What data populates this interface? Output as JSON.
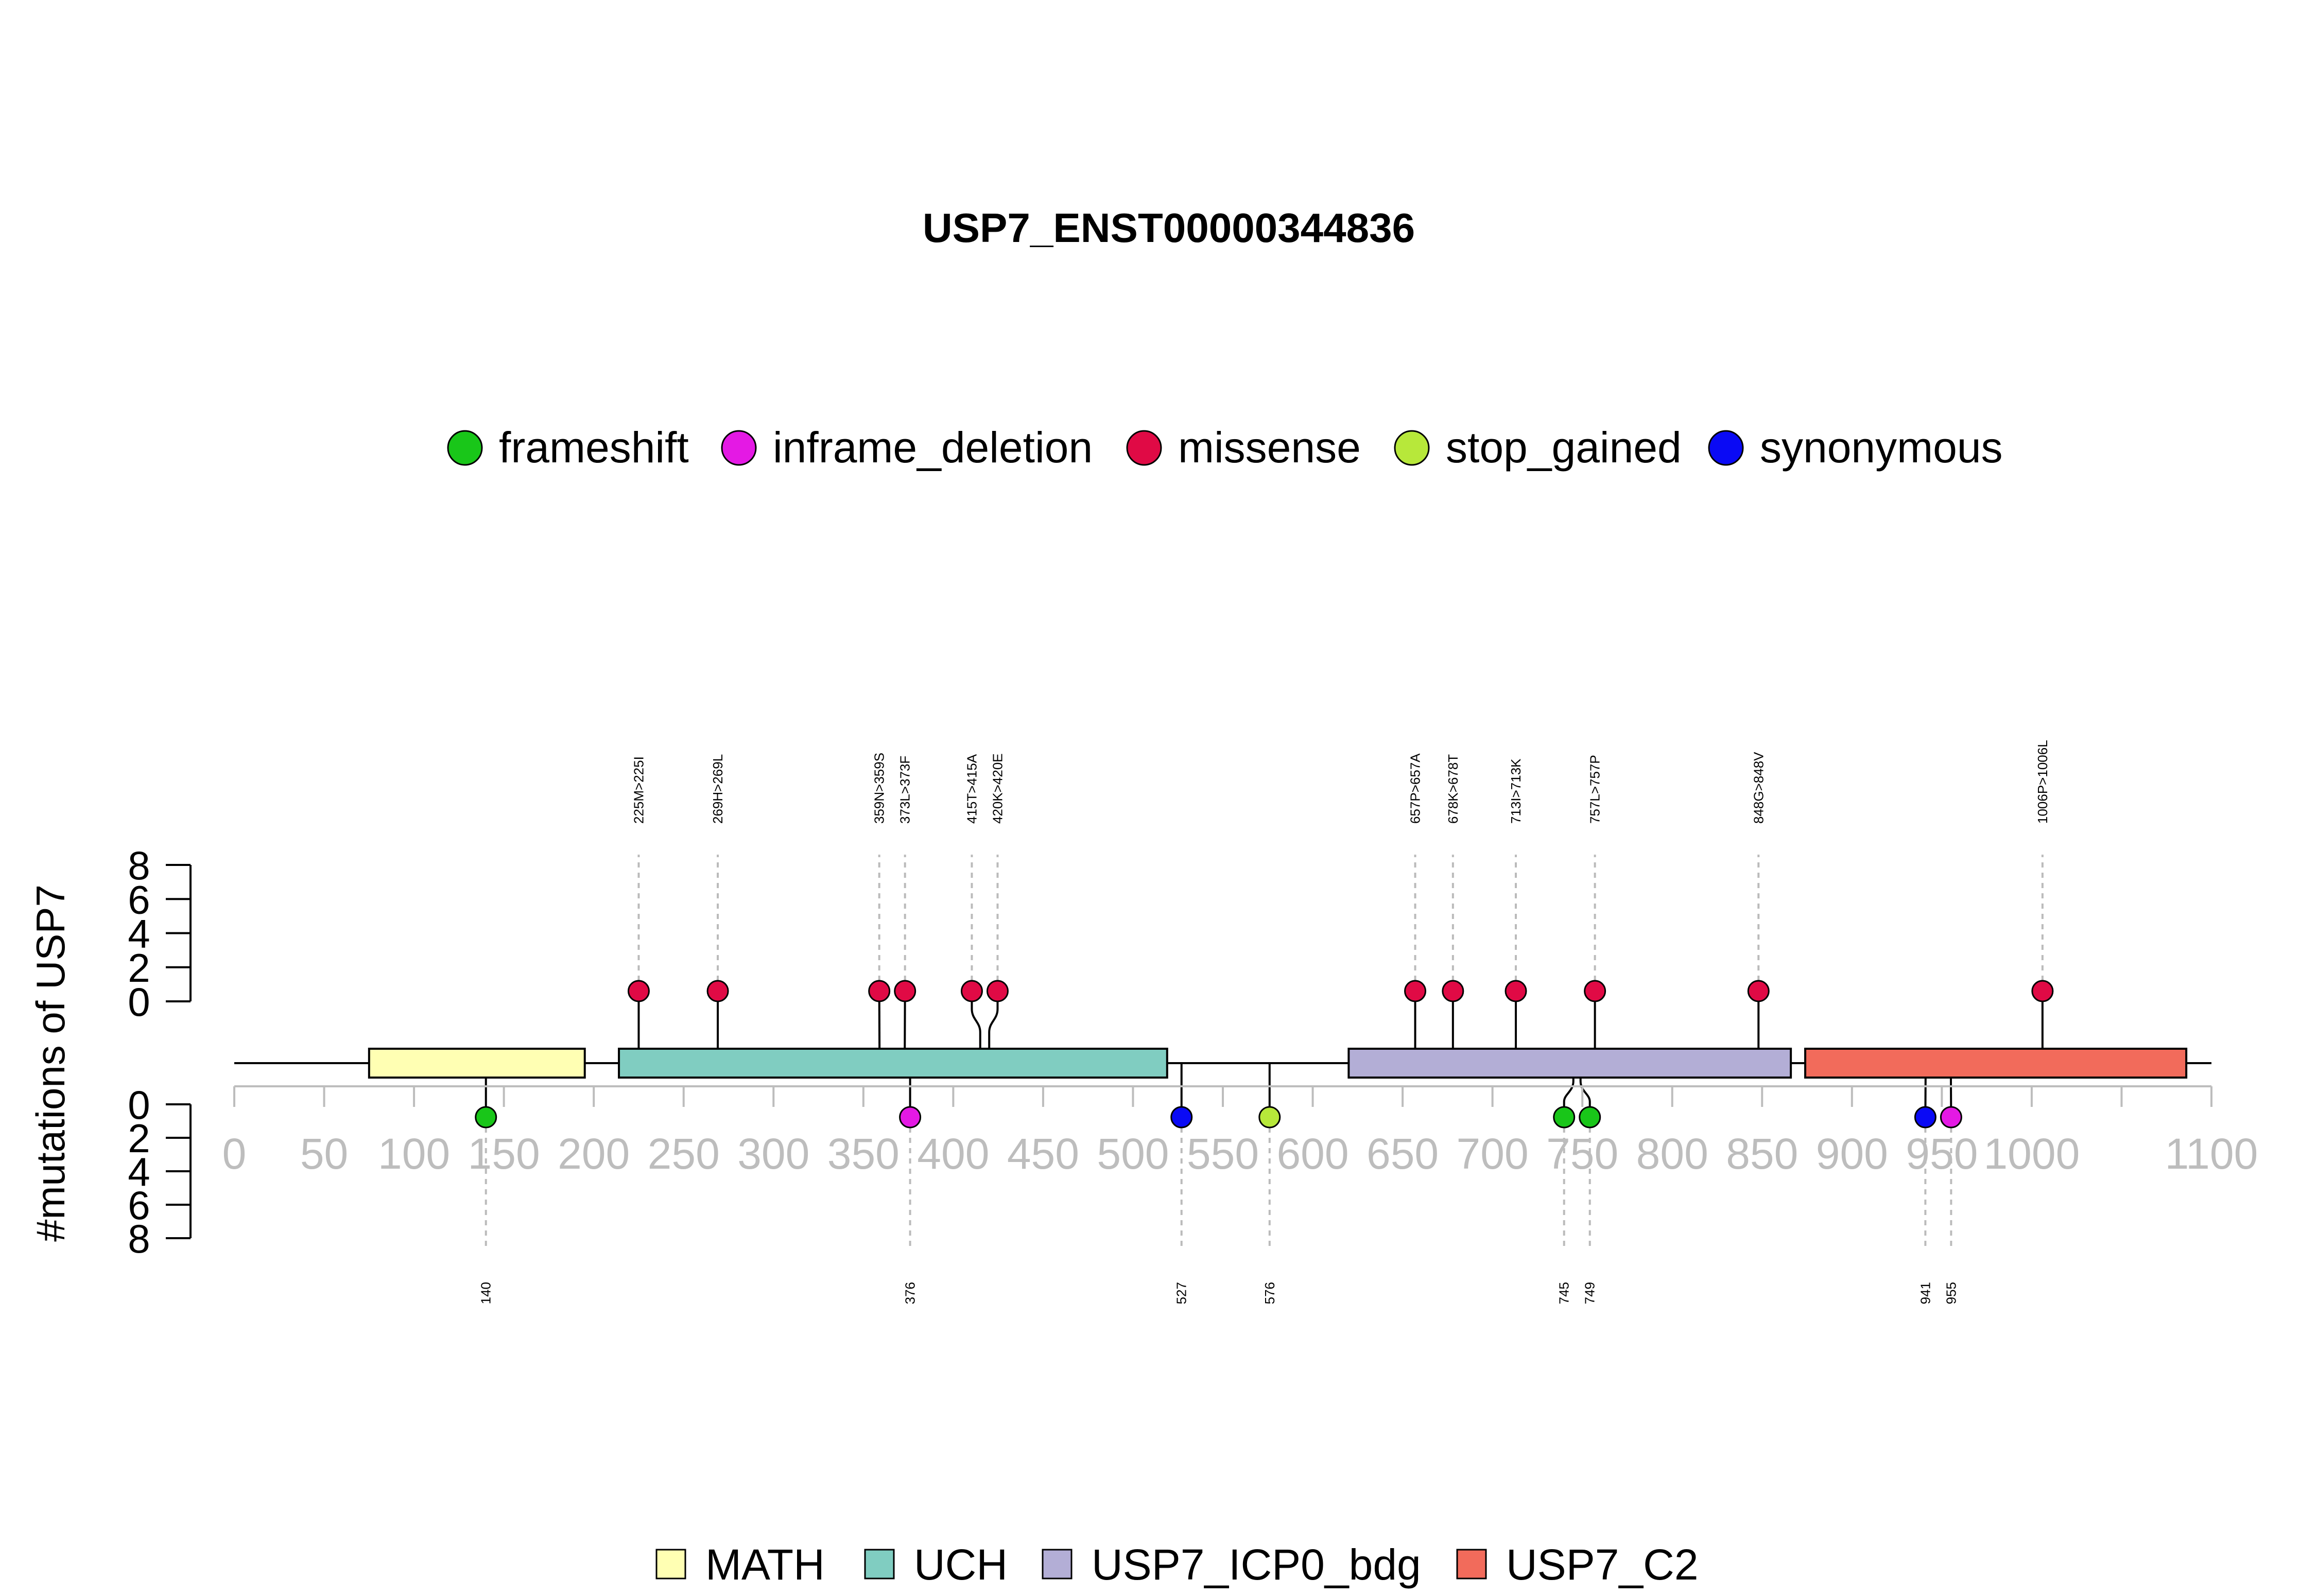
{
  "chart_data": {
    "type": "lollipop",
    "title": "USP7_ENST00000344836",
    "ylabel": "#mutations of USP7",
    "xlim": [
      0,
      1100
    ],
    "x_ticks": [
      0,
      50,
      100,
      150,
      200,
      250,
      300,
      350,
      400,
      450,
      500,
      550,
      600,
      650,
      700,
      750,
      800,
      850,
      900,
      950,
      1000,
      1100
    ],
    "y_ticks": [
      0,
      2,
      4,
      6,
      8
    ],
    "ylim": [
      0,
      8
    ],
    "mutation_legend": [
      {
        "name": "frameshift",
        "color": "#19c619"
      },
      {
        "name": "inframe_deletion",
        "color": "#e419e4"
      },
      {
        "name": "missense",
        "color": "#e00a45"
      },
      {
        "name": "stop_gained",
        "color": "#b7e83a"
      },
      {
        "name": "synonymous",
        "color": "#0a0af5"
      }
    ],
    "domain_legend": [
      {
        "name": "MATH",
        "color": "#ffffb3"
      },
      {
        "name": "UCH",
        "color": "#80cdc1"
      },
      {
        "name": "USP7_ICP0_bdg",
        "color": "#b3aed6"
      },
      {
        "name": "USP7_C2",
        "color": "#f26b5b"
      }
    ],
    "domains": [
      {
        "name": "MATH",
        "start": 75,
        "end": 195
      },
      {
        "name": "UCH",
        "start": 214,
        "end": 519
      },
      {
        "name": "USP7_ICP0_bdg",
        "start": 620,
        "end": 866
      },
      {
        "name": "USP7_C2",
        "start": 874,
        "end": 1086
      }
    ],
    "mutations_top": [
      {
        "position": 225,
        "label": "225M>225I",
        "type": "missense",
        "count": 1
      },
      {
        "position": 269,
        "label": "269H>269L",
        "type": "missense",
        "count": 1
      },
      {
        "position": 359,
        "label": "359N>359S",
        "type": "missense",
        "count": 1
      },
      {
        "position": 373,
        "label": "373L>373F",
        "type": "missense",
        "count": 1
      },
      {
        "position": 415,
        "label": "415T>415A",
        "type": "missense",
        "count": 1
      },
      {
        "position": 420,
        "label": "420K>420E",
        "type": "missense",
        "count": 1
      },
      {
        "position": 657,
        "label": "657P>657A",
        "type": "missense",
        "count": 1
      },
      {
        "position": 678,
        "label": "678K>678T",
        "type": "missense",
        "count": 1
      },
      {
        "position": 713,
        "label": "713I>713K",
        "type": "missense",
        "count": 1
      },
      {
        "position": 757,
        "label": "757L>757P",
        "type": "missense",
        "count": 1
      },
      {
        "position": 848,
        "label": "848G>848V",
        "type": "missense",
        "count": 1
      },
      {
        "position": 1006,
        "label": "1006P>1006L",
        "type": "missense",
        "count": 1
      }
    ],
    "mutations_bottom": [
      {
        "position": 140,
        "label": "140",
        "type": "frameshift",
        "count": 1
      },
      {
        "position": 376,
        "label": "376",
        "type": "inframe_deletion",
        "count": 1
      },
      {
        "position": 527,
        "label": "527",
        "type": "synonymous",
        "count": 1
      },
      {
        "position": 576,
        "label": "576",
        "type": "stop_gained",
        "count": 1
      },
      {
        "position": 745,
        "label": "745",
        "type": "frameshift",
        "count": 1
      },
      {
        "position": 749,
        "label": "749",
        "type": "frameshift",
        "count": 1
      },
      {
        "position": 941,
        "label": "941",
        "type": "synonymous",
        "count": 1
      },
      {
        "position": 955,
        "label": "955",
        "type": "inframe_deletion",
        "count": 1
      }
    ]
  }
}
